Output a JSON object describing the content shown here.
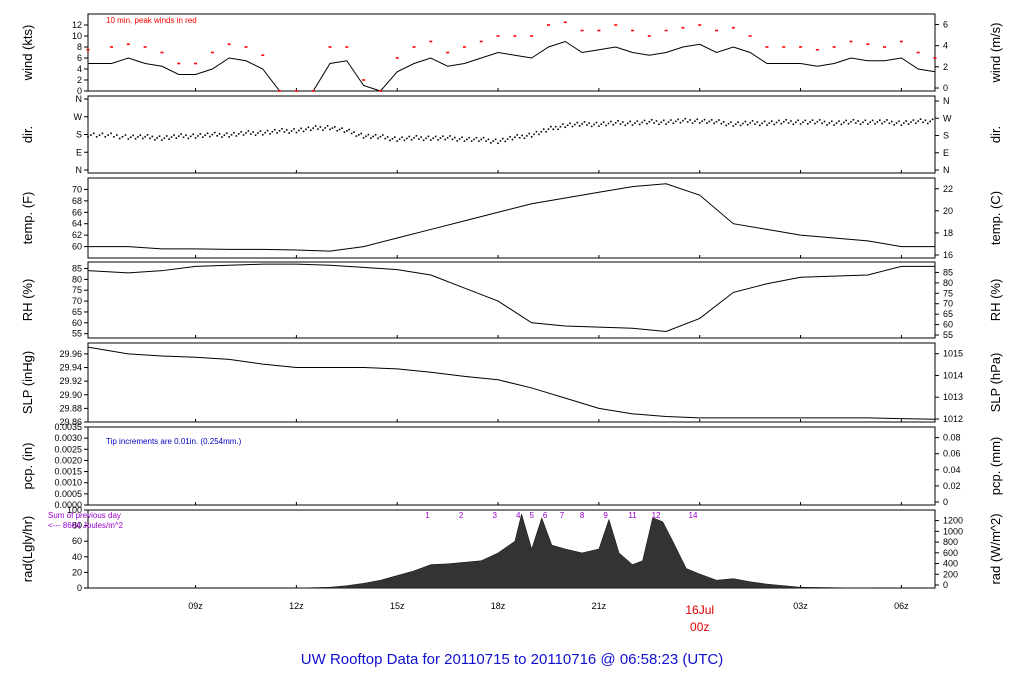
{
  "footer": "UW Rooftop Data for 20110715  to  20110716 @ 06:58:23  (UTC)",
  "colors": {
    "peak": "#ff0000",
    "note": "#0000c0",
    "rad_note": "#9900cc",
    "date": "#dd0000",
    "series": "#000000"
  },
  "chart_data": [
    {
      "type": "line",
      "id": "wind",
      "left_label": "wind (kts)",
      "right_label": "wind (m/s)",
      "annotation": "10 min. peak winds in red",
      "ylim": [
        0,
        14
      ],
      "yticks": [
        "0",
        "2",
        "4",
        "6",
        "8",
        "10",
        "12"
      ],
      "right_yticks": [
        "0",
        "2",
        "4",
        "6"
      ],
      "x": [
        5.8,
        6.5,
        7,
        7.5,
        8,
        8.5,
        9,
        9.5,
        10,
        10.5,
        11,
        11.5,
        12,
        12.5,
        13,
        13.5,
        14,
        14.5,
        15,
        15.5,
        16,
        16.5,
        17,
        17.5,
        18,
        18.5,
        19,
        19.5,
        20,
        20.5,
        21,
        21.5,
        22,
        22.5,
        23,
        23.5,
        24,
        24.5,
        25,
        25.5,
        26,
        26.5,
        27,
        27.5,
        28,
        28.5,
        29,
        29.5,
        30,
        30.5,
        31
      ],
      "series": [
        {
          "values": [
            5,
            5,
            6,
            5,
            4.5,
            3,
            3,
            4,
            6,
            5.5,
            4,
            0,
            0,
            0,
            5,
            5.5,
            1,
            0,
            3.5,
            5,
            6,
            4.5,
            5,
            6,
            7,
            6.5,
            6,
            8,
            9,
            7,
            7.5,
            8,
            7,
            6.5,
            7,
            8,
            8.5,
            7,
            8,
            7,
            5,
            5,
            5,
            4.5,
            5,
            6,
            5.5,
            5.5,
            6,
            4,
            3.5
          ]
        },
        {
          "values": [
            7.5,
            8,
            8.5,
            8,
            7,
            5,
            5,
            7,
            8.5,
            8,
            6.5,
            0,
            0,
            0,
            8,
            8,
            2,
            0,
            6,
            8,
            9,
            7,
            8,
            9,
            10,
            10,
            10,
            12,
            12.5,
            11,
            11,
            12,
            11,
            10,
            11,
            11.5,
            12,
            11,
            11.5,
            10,
            8,
            8,
            8,
            7.5,
            8,
            9,
            8.5,
            8,
            9,
            7,
            6
          ]
        }
      ]
    },
    {
      "type": "scatter",
      "id": "dir",
      "left_label": "dir.",
      "right_label": "dir.",
      "ylim": [
        0,
        360
      ],
      "yticks": [
        "N",
        "E",
        "S",
        "W",
        "N"
      ],
      "right_yticks": [
        "N",
        "E",
        "S",
        "W",
        "N"
      ],
      "x": [
        5.8,
        7,
        8,
        9,
        10,
        11,
        12,
        13,
        14,
        15,
        16,
        17,
        18,
        19,
        20,
        21,
        22,
        23,
        24,
        25,
        26,
        27,
        28,
        29,
        30,
        31
      ],
      "values": [
        180,
        170,
        165,
        175,
        180,
        190,
        200,
        215,
        175,
        160,
        165,
        160,
        150,
        180,
        225,
        230,
        235,
        240,
        245,
        230,
        235,
        240,
        235,
        240,
        235,
        245
      ]
    },
    {
      "type": "line",
      "id": "temp",
      "left_label": "temp. (F)",
      "right_label": "temp. (C)",
      "ylim": [
        58,
        72
      ],
      "yticks": [
        "60",
        "62",
        "64",
        "66",
        "68",
        "70"
      ],
      "right_yticks": [
        "16",
        "18",
        "20",
        "22"
      ],
      "x": [
        5.8,
        7,
        8,
        9,
        10,
        11,
        12,
        13,
        14,
        15,
        16,
        17,
        18,
        19,
        20,
        21,
        22,
        23,
        24,
        25,
        26,
        27,
        28,
        29,
        30,
        31
      ],
      "values": [
        60,
        60,
        59.6,
        59.6,
        59.5,
        59.5,
        59.4,
        59.2,
        60,
        61.5,
        63,
        64.5,
        66,
        67.5,
        68.5,
        69.5,
        70.5,
        71,
        69,
        64,
        63,
        62,
        61.5,
        61,
        60,
        60
      ]
    },
    {
      "type": "line",
      "id": "rh",
      "left_label": "RH (%)",
      "right_label": "RH (%)",
      "ylim": [
        53,
        88
      ],
      "yticks": [
        "55",
        "60",
        "65",
        "70",
        "75",
        "80",
        "85"
      ],
      "right_yticks": [
        "55",
        "60",
        "65",
        "70",
        "75",
        "80",
        "85"
      ],
      "x": [
        5.8,
        7,
        8,
        9,
        10,
        11,
        12,
        13,
        14,
        15,
        16,
        17,
        18,
        19,
        20,
        21,
        22,
        23,
        24,
        25,
        26,
        27,
        28,
        29,
        30,
        31
      ],
      "values": [
        84,
        83,
        84,
        86,
        86.5,
        87,
        87,
        86.5,
        85.5,
        84.5,
        82,
        76,
        70,
        60,
        58.5,
        58,
        57.5,
        56,
        62,
        74,
        78,
        81,
        81.5,
        82,
        86,
        86
      ]
    },
    {
      "type": "line",
      "id": "slp",
      "left_label": "SLP (inHg)",
      "right_label": "SLP (hPa)",
      "ylim": [
        29.86,
        29.976
      ],
      "yticks": [
        "29.86",
        "29.88",
        "29.90",
        "29.92",
        "29.94",
        "29.96"
      ],
      "right_yticks": [
        "1012",
        "1013",
        "1014",
        "1015"
      ],
      "x": [
        5.8,
        7,
        8,
        9,
        10,
        11,
        12,
        13,
        14,
        15,
        16,
        17,
        18,
        19,
        20,
        21,
        22,
        23,
        24,
        25,
        26,
        27,
        28,
        29,
        30,
        31
      ],
      "values": [
        29.97,
        29.96,
        29.957,
        29.955,
        29.952,
        29.945,
        29.94,
        29.94,
        29.94,
        29.938,
        29.933,
        29.927,
        29.922,
        29.91,
        29.895,
        29.88,
        29.872,
        29.868,
        29.866,
        29.866,
        29.866,
        29.866,
        29.866,
        29.866,
        29.865,
        29.864
      ]
    },
    {
      "type": "line",
      "id": "pcp",
      "left_label": "pcp. (in)",
      "right_label": "pcp. (mm)",
      "annotation": "Tip increments are 0.01in. (0.254mm.)",
      "ylim": [
        0,
        0.0035
      ],
      "yticks": [
        "0.0000",
        "0.0005",
        "0.0010",
        "0.0015",
        "0.0020",
        "0.0025",
        "0.0030",
        "0.0035"
      ],
      "right_yticks": [
        "0",
        "0.02",
        "0.04",
        "0.06",
        "0.08"
      ],
      "x": [
        5.8,
        31
      ],
      "values": [
        0,
        0
      ]
    },
    {
      "type": "area",
      "id": "rad",
      "left_label": "rad(Lgly/hr)",
      "right_label": "rad (W/m^2)",
      "annotation_lines": [
        "Sum of previous day",
        "<--- 8604 Joules/m^2"
      ],
      "hour_labels": [
        "1",
        "2",
        "3",
        "4",
        "5",
        "6",
        "7",
        "8",
        "9",
        "11",
        "12",
        "14"
      ],
      "hour_label_x": [
        15.9,
        16.9,
        17.9,
        18.6,
        19.0,
        19.4,
        19.9,
        20.5,
        21.2,
        22.0,
        22.7,
        23.8
      ],
      "ylim": [
        0,
        100
      ],
      "yticks": [
        "0",
        "20",
        "40",
        "60",
        "80",
        "100"
      ],
      "right_yticks": [
        "0",
        "200",
        "400",
        "600",
        "800",
        "1000",
        "1200"
      ],
      "x": [
        12,
        13,
        13.5,
        14,
        14.5,
        15,
        15.5,
        16,
        16.5,
        17,
        17.5,
        18,
        18.5,
        18.7,
        19,
        19.3,
        19.6,
        20,
        20.5,
        21,
        21.3,
        21.6,
        22,
        22.3,
        22.6,
        22.9,
        23.2,
        23.6,
        24,
        24.5,
        25,
        25.5,
        26,
        26.5,
        27,
        28,
        29
      ],
      "values": [
        0,
        1,
        3,
        6,
        10,
        16,
        22,
        30,
        31,
        33,
        35,
        45,
        60,
        95,
        50,
        90,
        55,
        50,
        45,
        50,
        88,
        45,
        30,
        35,
        90,
        85,
        60,
        25,
        18,
        10,
        12,
        8,
        5,
        3,
        1,
        0.5,
        0
      ]
    }
  ],
  "x_axis": {
    "ticks": [
      "09z",
      "12z",
      "15z",
      "18z",
      "21z",
      "00z",
      "03z",
      "06z"
    ],
    "tick_x": [
      9,
      12,
      15,
      18,
      21,
      24,
      27,
      30
    ],
    "date_label": "16Jul",
    "date_hour": "00z",
    "range": [
      5.8,
      31
    ]
  }
}
